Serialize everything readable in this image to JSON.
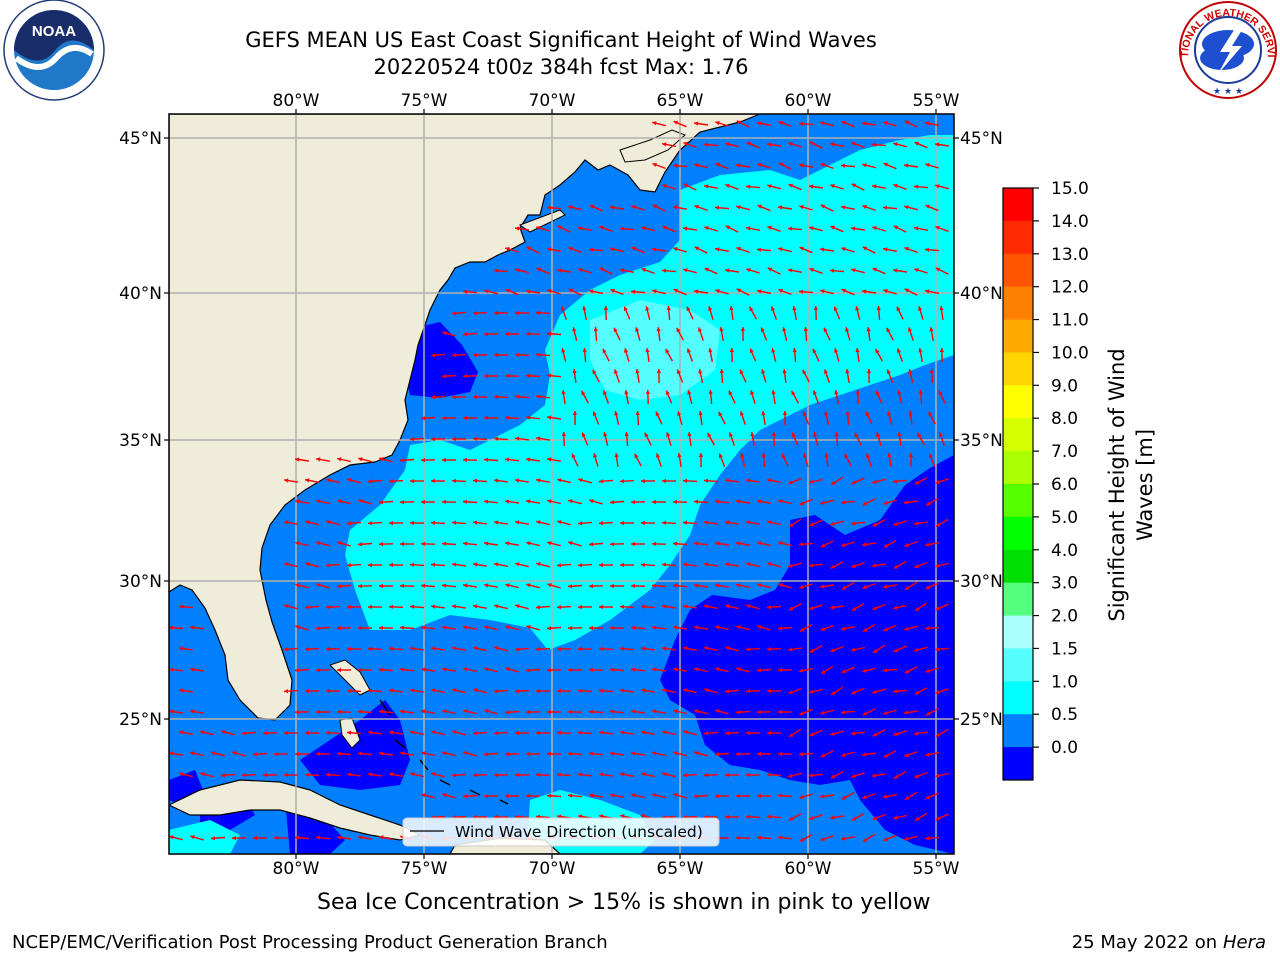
{
  "title": {
    "line1": "GEFS MEAN US East Coast Significant Height of Wind Waves",
    "line2": "20220524 t00z 384h fcst   Max: 1.76"
  },
  "map": {
    "lon_ticks": [
      "80°W",
      "75°W",
      "70°W",
      "65°W",
      "60°W",
      "55°W"
    ],
    "lat_ticks": [
      "45°N",
      "40°N",
      "35°N",
      "30°N",
      "25°N"
    ],
    "legend_label": "Wind Wave Direction (unscaled)",
    "arrow_color": "#ff0000",
    "land_color": "#efedda",
    "gridline_color": "#b0b0b0"
  },
  "colorbar": {
    "label": "Significant Height of Wind Waves [m]",
    "label_line1": "Significant Height of Wind",
    "label_line2": "Waves [m]",
    "ticks": [
      "15.0",
      "14.0",
      "13.0",
      "12.0",
      "11.0",
      "10.0",
      "9.0",
      "8.0",
      "7.0",
      "6.0",
      "5.0",
      "4.0",
      "3.0",
      "2.0",
      "1.5",
      "1.0",
      "0.5",
      "0.0"
    ],
    "colors_top_to_bottom": [
      "#ff0000",
      "#ff2a00",
      "#ff5500",
      "#ff8000",
      "#ffaa00",
      "#ffd500",
      "#ffff00",
      "#d4ff00",
      "#aaff00",
      "#55ff00",
      "#00ff00",
      "#00e000",
      "#55ff80",
      "#aaffff",
      "#55ffff",
      "#00ffff",
      "#0080ff",
      "#0000ff"
    ]
  },
  "caption": "Sea Ice Concentration > 15% is shown in pink to yellow",
  "footer": {
    "left": "NCEP/EMC/Verification Post Processing Product Generation Branch",
    "date": "25 May 2022 on",
    "machine": "Hera"
  },
  "logos": {
    "noaa": "NOAA",
    "nws": "NATIONAL WEATHER SERVICE"
  }
}
